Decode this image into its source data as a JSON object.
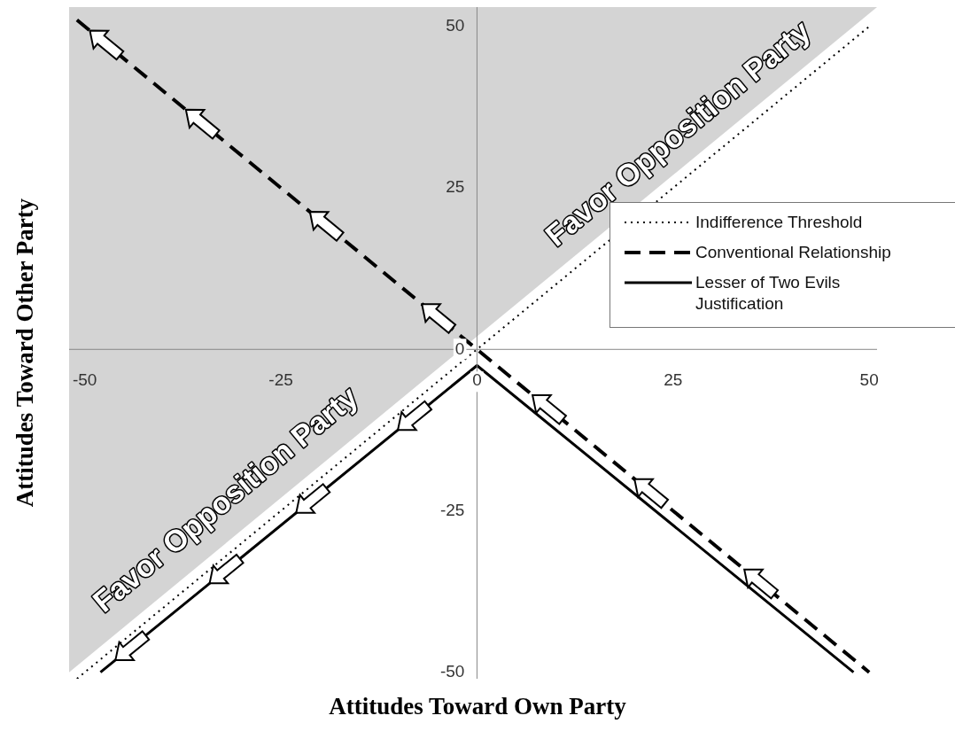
{
  "chart_data": {
    "type": "line",
    "xlabel": "Attitudes Toward Own Party",
    "ylabel": "Attitudes Toward Other Party",
    "xlim": [
      -52,
      51
    ],
    "ylim": [
      -51,
      53
    ],
    "xticks": [
      -50,
      -25,
      0,
      25,
      50
    ],
    "yticks": [
      -50,
      -25,
      0,
      25,
      50
    ],
    "grid": false,
    "legend": "right",
    "marker": "none",
    "series": [
      {
        "type": "area",
        "color": "#d4d4d4",
        "x": [
          -52,
          51
        ],
        "values": [
          -50,
          53
        ]
      },
      {
        "name": "Indifference Threshold",
        "color": "#000000",
        "line_style": "dotted",
        "x": [
          -51,
          50
        ],
        "values": [
          -51,
          50
        ]
      },
      {
        "name": "Conventional Relationship",
        "color": "#000000",
        "line_style": "dashed",
        "x": [
          -51,
          0,
          50
        ],
        "values": [
          51,
          0,
          -50
        ]
      },
      {
        "name": "Lesser of Two Evils Justification",
        "color": "#000000",
        "line_style": "solid",
        "x": [
          -48,
          0,
          48
        ],
        "values": [
          -50,
          -2.5,
          -50
        ]
      }
    ],
    "annotations": [
      "Favor Opposition Party",
      "Favor Opposition Party"
    ]
  }
}
